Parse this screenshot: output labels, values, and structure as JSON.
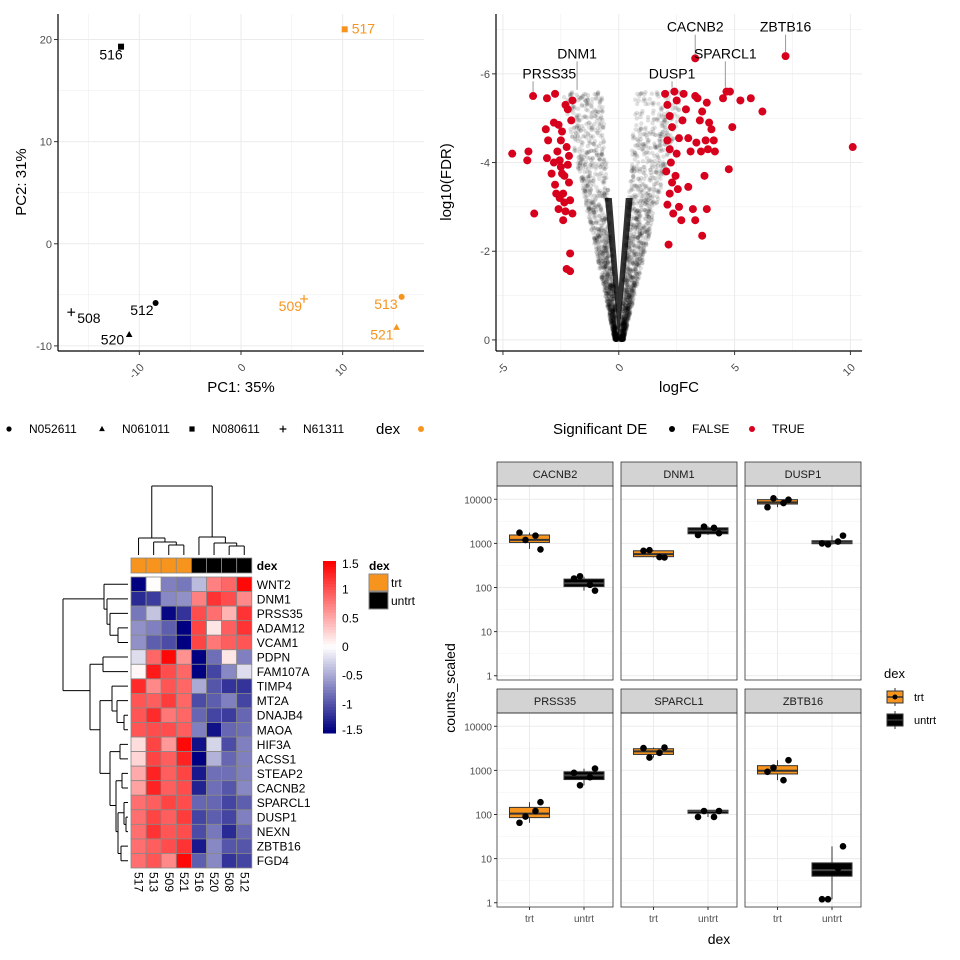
{
  "colors": {
    "trt": "#F7941D",
    "untrt": "#000000",
    "sig_true": "#D7001D",
    "sig_false": "#000000",
    "heat_low": "#000080",
    "heat_mid": "#FFFFFF",
    "heat_high": "#FF0000",
    "strip_bg": "#D3D3D3"
  },
  "chart_data": [
    {
      "id": "pca",
      "type": "scatter",
      "title": "",
      "xlabel": "PC1: 35%",
      "ylabel": "PC2: 31%",
      "xlim": [
        -18,
        18
      ],
      "ylim": [
        -10.5,
        22.5
      ],
      "xticks": [
        -10,
        0,
        10
      ],
      "xtick_labels": [
        "-10",
        "0",
        "10"
      ],
      "yticks": [
        -10,
        0,
        10,
        20
      ],
      "ytick_labels": [
        "-10",
        "0",
        "10",
        "20"
      ],
      "grid": true,
      "points": [
        {
          "label": "516",
          "x": -11.8,
          "y": 19.3,
          "dex": "untrt",
          "shape": "square"
        },
        {
          "label": "517",
          "x": 10.2,
          "y": 21.0,
          "dex": "trt",
          "shape": "square"
        },
        {
          "label": "512",
          "x": -8.4,
          "y": -5.8,
          "dex": "untrt",
          "shape": "circle"
        },
        {
          "label": "508",
          "x": -16.7,
          "y": -6.7,
          "dex": "untrt",
          "shape": "plus"
        },
        {
          "label": "520",
          "x": -11.0,
          "y": -8.9,
          "dex": "untrt",
          "shape": "triangle"
        },
        {
          "label": "509",
          "x": 6.2,
          "y": -5.4,
          "dex": "trt",
          "shape": "plus"
        },
        {
          "label": "513",
          "x": 15.8,
          "y": -5.2,
          "dex": "trt",
          "shape": "circle"
        },
        {
          "label": "521",
          "x": 15.3,
          "y": -8.2,
          "dex": "trt",
          "shape": "triangle"
        }
      ],
      "legend": {
        "placement": "bottom",
        "shape_items": [
          {
            "shape": "circle",
            "label": "N052611"
          },
          {
            "shape": "triangle",
            "label": "N061011"
          },
          {
            "shape": "square",
            "label": "N080611"
          },
          {
            "shape": "plus",
            "label": "N61311"
          }
        ],
        "color_title": "dex"
      }
    },
    {
      "id": "volcano",
      "type": "scatter",
      "title": "",
      "xlabel": "logFC",
      "ylabel": "log10(FDR)",
      "xlim": [
        -5.3,
        10.5
      ],
      "ylim": [
        0.25,
        -7.35
      ],
      "y_reversed": true,
      "xticks": [
        -5,
        0,
        5,
        10
      ],
      "xtick_labels": [
        "-5",
        "0",
        "5",
        "10"
      ],
      "yticks": [
        -6,
        -4,
        -2,
        0
      ],
      "ytick_labels": [
        "-6",
        "-4",
        "-2",
        "0"
      ],
      "grid": true,
      "background_note": "dense cloud of thousands of non-significant genes forming a V shape centered at logFC 0",
      "labeled_genes": [
        {
          "gene": "ZBTB16",
          "x": 7.2,
          "y": -6.4
        },
        {
          "gene": "CACNB2",
          "x": 3.3,
          "y": -6.35
        },
        {
          "gene": "SPARCL1",
          "x": 4.6,
          "y": -5.6
        },
        {
          "gene": "DUSP1",
          "x": 2.3,
          "y": -5.6
        },
        {
          "gene": "DNM1",
          "x": -1.8,
          "y": -5.55
        },
        {
          "gene": "PRSS35",
          "x": -3.7,
          "y": -5.5
        }
      ],
      "significant_points": [
        [
          -4.6,
          -4.2
        ],
        [
          -3.9,
          -4.25
        ],
        [
          -3.95,
          -4.05
        ],
        [
          -3.7,
          -5.5
        ],
        [
          -3.65,
          -2.85
        ],
        [
          -3.1,
          -5.45
        ],
        [
          -3.15,
          -4.75
        ],
        [
          -3.05,
          -4.5
        ],
        [
          -3.1,
          -4.1
        ],
        [
          -2.9,
          -3.75
        ],
        [
          -2.8,
          -4.9
        ],
        [
          -2.75,
          -3.5
        ],
        [
          -2.7,
          -3.3
        ],
        [
          -2.6,
          -2.95
        ],
        [
          -2.65,
          -4.25
        ],
        [
          -2.55,
          -4.05
        ],
        [
          -2.5,
          -4.5
        ],
        [
          -2.45,
          -3.75
        ],
        [
          -2.4,
          -3.3
        ],
        [
          -2.35,
          -3.1
        ],
        [
          -2.3,
          -2.9
        ],
        [
          -2.25,
          -4.35
        ],
        [
          -2.2,
          -3.95
        ],
        [
          -2.15,
          -3.55
        ],
        [
          -2.1,
          -3.15
        ],
        [
          -2.05,
          -4.95
        ],
        [
          -2.0,
          -5.4
        ],
        [
          -2.0,
          -2.85
        ],
        [
          -2.3,
          -5.3
        ],
        [
          -2.2,
          -5.2
        ],
        [
          -2.25,
          -1.6
        ],
        [
          -2.1,
          -1.55
        ],
        [
          -2.1,
          -1.95
        ],
        [
          -2.6,
          -4.85
        ],
        [
          -2.8,
          -4.0
        ],
        [
          -2.5,
          -3.9
        ],
        [
          -2.35,
          -3.7
        ],
        [
          -2.45,
          -4.7
        ],
        [
          -2.15,
          -4.15
        ],
        [
          -2.4,
          -2.7
        ],
        [
          -2.75,
          -5.55
        ],
        [
          -2.55,
          -3.2
        ],
        [
          2.0,
          -5.55
        ],
        [
          2.1,
          -5.3
        ],
        [
          2.2,
          -5.05
        ],
        [
          2.3,
          -4.8
        ],
        [
          2.1,
          -4.5
        ],
        [
          2.2,
          -4.3
        ],
        [
          2.25,
          -4.0
        ],
        [
          2.05,
          -3.8
        ],
        [
          2.3,
          -3.55
        ],
        [
          2.2,
          -3.3
        ],
        [
          2.1,
          -3.05
        ],
        [
          2.35,
          -2.85
        ],
        [
          2.15,
          -2.15
        ],
        [
          2.4,
          -5.6
        ],
        [
          2.5,
          -5.4
        ],
        [
          2.6,
          -4.55
        ],
        [
          2.5,
          -4.2
        ],
        [
          2.45,
          -3.7
        ],
        [
          2.55,
          -3.4
        ],
        [
          2.6,
          -3.0
        ],
        [
          2.7,
          -2.7
        ],
        [
          2.8,
          -5.55
        ],
        [
          2.9,
          -5.2
        ],
        [
          3.0,
          -4.55
        ],
        [
          3.1,
          -4.25
        ],
        [
          3.0,
          -3.45
        ],
        [
          3.2,
          -2.95
        ],
        [
          3.3,
          -5.5
        ],
        [
          3.4,
          -5.45
        ],
        [
          3.5,
          -4.95
        ],
        [
          3.35,
          -4.45
        ],
        [
          3.55,
          -4.25
        ],
        [
          3.3,
          -2.7
        ],
        [
          3.6,
          -2.35
        ],
        [
          3.7,
          -3.7
        ],
        [
          3.8,
          -5.35
        ],
        [
          3.75,
          -4.5
        ],
        [
          3.9,
          -4.9
        ],
        [
          3.85,
          -4.3
        ],
        [
          4.0,
          -4.75
        ],
        [
          4.1,
          -4.5
        ],
        [
          4.15,
          -4.25
        ],
        [
          3.8,
          -2.95
        ],
        [
          4.5,
          -5.45
        ],
        [
          4.65,
          -5.6
        ],
        [
          4.8,
          -5.6
        ],
        [
          4.75,
          -3.85
        ],
        [
          4.9,
          -4.8
        ],
        [
          5.25,
          -5.4
        ],
        [
          5.7,
          -5.45
        ],
        [
          6.2,
          -5.15
        ],
        [
          7.2,
          -6.4
        ],
        [
          3.3,
          -6.35
        ],
        [
          10.1,
          -4.35
        ],
        [
          3.6,
          -5.15
        ],
        [
          2.75,
          -4.95
        ]
      ],
      "legend": {
        "placement": "bottom",
        "title": "Significant DE",
        "items": [
          {
            "label": "FALSE",
            "color": "#000000"
          },
          {
            "label": "TRUE",
            "color": "#D7001D"
          }
        ]
      }
    },
    {
      "id": "heatmap",
      "type": "heatmap",
      "title": "",
      "columns": [
        "517",
        "513",
        "509",
        "521",
        "516",
        "520",
        "508",
        "512"
      ],
      "column_annotation": {
        "name": "dex",
        "values": [
          "trt",
          "trt",
          "trt",
          "trt",
          "untrt",
          "untrt",
          "untrt",
          "untrt"
        ]
      },
      "rows": [
        "WNT2",
        "DNM1",
        "PRSS35",
        "ADAM12",
        "VCAM1",
        "PDPN",
        "FAM107A",
        "TIMP4",
        "MT2A",
        "DNAJB4",
        "MAOA",
        "HIF3A",
        "ACSS1",
        "STEAP2",
        "CACNB2",
        "SPARCL1",
        "DUSP1",
        "NEXN",
        "ZBTB16",
        "FGD4"
      ],
      "values": [
        [
          -1.5,
          0.02,
          -0.75,
          -0.8,
          -0.4,
          0.75,
          0.9,
          1.45
        ],
        [
          -1.25,
          -1.15,
          -0.7,
          -0.65,
          0.75,
          1.2,
          1.05,
          0.7
        ],
        [
          -0.8,
          -0.35,
          -1.45,
          -1.2,
          1.05,
          0.85,
          0.45,
          1.2
        ],
        [
          -0.65,
          -0.75,
          -0.95,
          -1.5,
          1.1,
          0.15,
          0.95,
          1.2
        ],
        [
          -0.65,
          -0.95,
          -1.05,
          -1.5,
          1.1,
          0.8,
          0.95,
          1.0
        ],
        [
          -0.2,
          0.9,
          1.45,
          0.65,
          -1.5,
          -0.85,
          0.15,
          -0.75
        ],
        [
          0.05,
          1.35,
          1.05,
          0.9,
          -1.5,
          -1.1,
          -0.7,
          -0.2
        ],
        [
          1.25,
          0.7,
          1.0,
          0.9,
          -0.5,
          -1.0,
          -1.2,
          -1.2
        ],
        [
          1.0,
          0.95,
          1.15,
          0.9,
          -1.05,
          -0.95,
          -0.75,
          -1.1
        ],
        [
          1.0,
          1.25,
          0.8,
          0.9,
          -0.9,
          -1.1,
          -1.15,
          -0.9
        ],
        [
          1.0,
          1.05,
          1.05,
          0.95,
          -0.75,
          -1.4,
          -0.9,
          -0.85
        ],
        [
          0.2,
          1.1,
          0.6,
          1.45,
          -1.4,
          -0.25,
          -1.05,
          -0.75
        ],
        [
          0.25,
          1.1,
          0.95,
          1.3,
          -1.5,
          -0.45,
          -0.9,
          -0.75
        ],
        [
          0.5,
          1.3,
          0.95,
          1.1,
          -1.35,
          -0.85,
          -0.85,
          -0.75
        ],
        [
          0.55,
          1.3,
          0.95,
          1.05,
          -1.3,
          -0.85,
          -1.0,
          -0.7
        ],
        [
          0.85,
          0.95,
          1.1,
          1.05,
          -0.9,
          -0.9,
          -1.1,
          -0.95
        ],
        [
          0.85,
          1.1,
          0.95,
          1.15,
          -1.1,
          -0.95,
          -1.1,
          -0.75
        ],
        [
          0.85,
          1.2,
          1.0,
          1.05,
          -1.05,
          -0.8,
          -1.25,
          -0.9
        ],
        [
          0.85,
          0.95,
          1.05,
          1.2,
          -1.35,
          -0.7,
          -1.0,
          -1.0
        ],
        [
          0.85,
          1.0,
          0.7,
          1.45,
          -0.95,
          -0.7,
          -1.2,
          -1.1
        ]
      ],
      "colorbar": {
        "range": [
          -1.5,
          1.5
        ],
        "ticks": [
          1.5,
          1,
          0.5,
          0,
          -0.5,
          -1,
          -1.5
        ],
        "tick_labels": [
          "1.5",
          "1",
          "0.5",
          "0",
          "-0.5",
          "-1",
          "-1.5"
        ]
      },
      "annotation_legend": {
        "title": "dex",
        "items": [
          {
            "label": "trt"
          },
          {
            "label": "untrt"
          }
        ]
      }
    },
    {
      "id": "boxplots",
      "type": "box",
      "title": "",
      "xlabel": "dex",
      "ylabel": "counts_scaled",
      "y_scale": "log10",
      "ylim": [
        1,
        20000
      ],
      "yticks": [
        1,
        10,
        100,
        1000,
        10000
      ],
      "ytick_labels": [
        "1",
        "10",
        "100",
        "1000",
        "10000"
      ],
      "categories": [
        "trt",
        "untrt"
      ],
      "facets": [
        {
          "gene": "CACNB2",
          "trt": {
            "q1": 1050,
            "median": 1200,
            "q3": 1550,
            "lo": 750,
            "hi": 1750,
            "points": [
              1750,
              1200,
              1500,
              730
            ]
          },
          "untrt": {
            "q1": 105,
            "median": 125,
            "q3": 155,
            "lo": 85,
            "hi": 175,
            "points": [
              160,
              180,
              115,
              85
            ]
          }
        },
        {
          "gene": "DNM1",
          "trt": {
            "q1": 500,
            "median": 570,
            "q3": 680,
            "lo": 480,
            "hi": 700,
            "points": [
              680,
              700,
              490,
              480
            ]
          },
          "untrt": {
            "q1": 1650,
            "median": 1950,
            "q3": 2250,
            "lo": 1550,
            "hi": 2450,
            "points": [
              1550,
              2400,
              2250,
              1700
            ]
          }
        },
        {
          "gene": "DUSP1",
          "trt": {
            "q1": 7800,
            "median": 8500,
            "q3": 9800,
            "lo": 6600,
            "hi": 10500,
            "points": [
              6600,
              10500,
              8200,
              9800
            ]
          },
          "untrt": {
            "q1": 1000,
            "median": 1050,
            "q3": 1150,
            "lo": 940,
            "hi": 1500,
            "points": [
              1000,
              950,
              1100,
              1500
            ]
          }
        },
        {
          "gene": "PRSS35",
          "trt": {
            "q1": 85,
            "median": 105,
            "q3": 145,
            "lo": 65,
            "hi": 190,
            "points": [
              65,
              90,
              120,
              190
            ]
          },
          "untrt": {
            "q1": 620,
            "median": 770,
            "q3": 930,
            "lo": 460,
            "hi": 1100,
            "points": [
              880,
              460,
              700,
              1100
            ]
          }
        },
        {
          "gene": "SPARCL1",
          "trt": {
            "q1": 2300,
            "median": 2700,
            "q3": 3100,
            "lo": 1950,
            "hi": 3300,
            "points": [
              3200,
              1950,
              2500,
              3300
            ]
          },
          "untrt": {
            "q1": 115,
            "median": 120,
            "q3": 125,
            "lo": 88,
            "hi": 125,
            "points": [
              88,
              120,
              88,
              120
            ]
          }
        },
        {
          "gene": "ZBTB16",
          "trt": {
            "q1": 830,
            "median": 980,
            "q3": 1280,
            "lo": 600,
            "hi": 1700,
            "points": [
              930,
              1150,
              600,
              1700
            ]
          },
          "untrt": {
            "q1": 4,
            "median": 5.5,
            "q3": 8,
            "lo": 1.2,
            "hi": 19,
            "points": [
              1.2,
              1.2,
              6,
              19
            ]
          }
        }
      ],
      "legend": {
        "placement": "right",
        "title": "dex",
        "items": [
          {
            "label": "trt"
          },
          {
            "label": "untrt"
          }
        ]
      }
    }
  ]
}
